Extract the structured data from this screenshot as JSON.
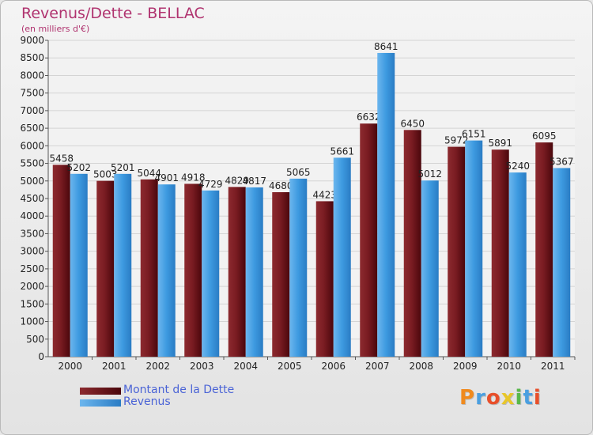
{
  "header": {
    "title": "Revenus/Dette - BELLAC",
    "subtitle": "(en milliers d'€)"
  },
  "logo": {
    "text": "Proxiti",
    "colors": [
      "#f08a1e",
      "#4a9fe0",
      "#e84f2a",
      "#e8c62a",
      "#58b84a",
      "#4a9fe0",
      "#e84f2a"
    ]
  },
  "colors": {
    "dette": "#6b1117",
    "revenus": "#3d9ae0",
    "title": "#b0336f",
    "legend_text": "#4a63d6"
  },
  "legend": [
    {
      "label": "Montant de la Dette",
      "color": "#6b1117"
    },
    {
      "label": "Revenus",
      "color": "#3d9ae0"
    }
  ],
  "chart_data": {
    "type": "bar",
    "title": "Revenus/Dette - BELLAC",
    "subtitle": "(en milliers d'€)",
    "xlabel": "",
    "ylabel": "",
    "ylim": [
      0,
      9000
    ],
    "ytick_step": 500,
    "grid": true,
    "legend_position": "bottom-left",
    "categories": [
      "2000",
      "2001",
      "2002",
      "2003",
      "2004",
      "2005",
      "2006",
      "2007",
      "2008",
      "2009",
      "2010",
      "2011"
    ],
    "series": [
      {
        "name": "Montant de la Dette",
        "values": [
          5458,
          5003,
          5044,
          4918,
          4829,
          4680,
          4423,
          6632,
          6450,
          5972,
          5891,
          6095
        ]
      },
      {
        "name": "Revenus",
        "values": [
          5202,
          5201,
          4901,
          4729,
          4817,
          5065,
          5661,
          8641,
          5012,
          6151,
          5240,
          5367
        ]
      }
    ]
  }
}
